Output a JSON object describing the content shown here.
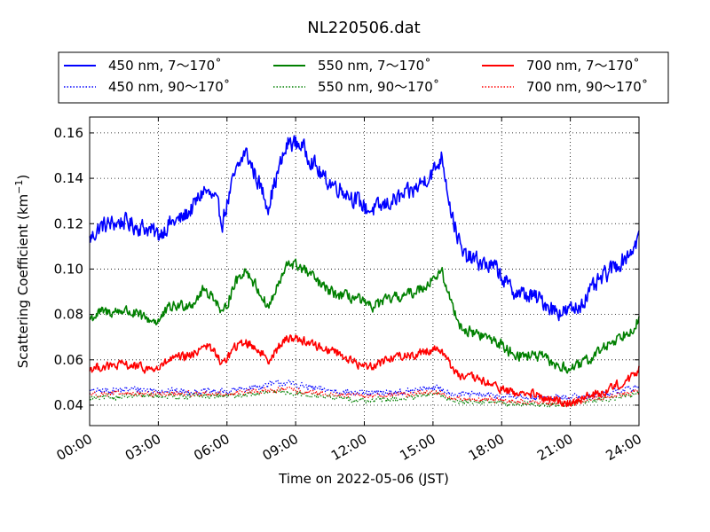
{
  "chart_data": {
    "type": "line",
    "title": "NL220506.dat",
    "xlabel": "Time on 2022-05-06 (JST)",
    "ylabel": "Scattering Coefficient (km",
    "ylabel_exponent": "−1",
    "ylabel_close": ")",
    "xlim": [
      0,
      24
    ],
    "ylim": [
      0.031,
      0.167
    ],
    "grid": true,
    "grid_style": "dotted",
    "legend_placement": "top",
    "x_ticks": [
      0,
      3,
      6,
      9,
      12,
      15,
      18,
      21,
      24
    ],
    "x_tick_labels": [
      "00:00",
      "03:00",
      "06:00",
      "09:00",
      "12:00",
      "15:00",
      "18:00",
      "21:00",
      "24:00"
    ],
    "y_ticks": [
      0.04,
      0.06,
      0.08,
      0.1,
      0.12,
      0.14,
      0.16
    ],
    "y_tick_labels": [
      "0.04",
      "0.06",
      "0.08",
      "0.10",
      "0.12",
      "0.14",
      "0.16"
    ],
    "series": [
      {
        "name": "450 nm, 7～170˚",
        "color": "#0000ff",
        "style": "solid",
        "x": [
          0,
          0.5,
          1,
          1.5,
          2,
          2.5,
          3,
          3.5,
          4,
          4.5,
          5,
          5.5,
          5.8,
          6.3,
          6.8,
          7.3,
          7.8,
          8.3,
          8.7,
          9.2,
          9.7,
          10.2,
          10.7,
          11.2,
          11.7,
          12.2,
          12.7,
          13.2,
          13.7,
          14.2,
          14.7,
          15.1,
          15.4,
          15.8,
          16.3,
          16.8,
          17.3,
          17.8,
          18.3,
          18.8,
          19.3,
          19.8,
          20.3,
          20.8,
          21.3,
          21.8,
          22.3,
          22.8,
          23.3,
          23.8,
          24
        ],
        "y": [
          0.113,
          0.119,
          0.12,
          0.121,
          0.119,
          0.118,
          0.115,
          0.12,
          0.122,
          0.127,
          0.135,
          0.13,
          0.121,
          0.14,
          0.152,
          0.14,
          0.128,
          0.145,
          0.156,
          0.155,
          0.148,
          0.14,
          0.137,
          0.134,
          0.13,
          0.126,
          0.127,
          0.13,
          0.132,
          0.135,
          0.14,
          0.144,
          0.15,
          0.125,
          0.106,
          0.104,
          0.102,
          0.1,
          0.092,
          0.089,
          0.088,
          0.086,
          0.082,
          0.081,
          0.083,
          0.089,
          0.095,
          0.1,
          0.104,
          0.11,
          0.115
        ],
        "noise": 0.0035
      },
      {
        "name": "450 nm, 90～170˚",
        "color": "#0000ff",
        "style": "dotted",
        "x": [
          0,
          2,
          4,
          6,
          8.5,
          10,
          12,
          14,
          15,
          16,
          18,
          20,
          22,
          24
        ],
        "y": [
          0.046,
          0.047,
          0.046,
          0.046,
          0.05,
          0.047,
          0.045,
          0.046,
          0.048,
          0.045,
          0.044,
          0.043,
          0.044,
          0.048
        ],
        "noise": 0.0013
      },
      {
        "name": "550 nm, 7～170˚",
        "color": "#008000",
        "style": "solid",
        "x": [
          0,
          0.5,
          1,
          1.5,
          2,
          2.5,
          3,
          3.5,
          4,
          4.5,
          5,
          5.5,
          5.8,
          6.3,
          6.8,
          7.3,
          7.8,
          8.3,
          8.7,
          9.2,
          9.7,
          10.2,
          10.7,
          11.2,
          11.7,
          12.2,
          12.7,
          13.2,
          13.7,
          14.2,
          14.7,
          15.1,
          15.4,
          15.8,
          16.3,
          16.8,
          17.3,
          17.8,
          18.3,
          18.8,
          19.3,
          19.8,
          20.3,
          20.8,
          21.3,
          21.8,
          22.3,
          22.8,
          23.3,
          23.8,
          24
        ],
        "y": [
          0.078,
          0.081,
          0.081,
          0.082,
          0.08,
          0.078,
          0.077,
          0.083,
          0.084,
          0.085,
          0.091,
          0.087,
          0.079,
          0.093,
          0.1,
          0.092,
          0.083,
          0.094,
          0.103,
          0.101,
          0.097,
          0.092,
          0.089,
          0.088,
          0.087,
          0.083,
          0.085,
          0.087,
          0.088,
          0.09,
          0.093,
          0.097,
          0.098,
          0.085,
          0.073,
          0.072,
          0.07,
          0.068,
          0.064,
          0.062,
          0.062,
          0.061,
          0.058,
          0.056,
          0.057,
          0.06,
          0.064,
          0.068,
          0.071,
          0.075,
          0.078
        ],
        "noise": 0.0022
      },
      {
        "name": "550 nm, 90～170˚",
        "color": "#008000",
        "style": "dotted",
        "x": [
          0,
          2,
          4,
          6,
          8.5,
          10,
          12,
          14,
          15,
          16,
          18,
          20,
          22,
          24
        ],
        "y": [
          0.043,
          0.044,
          0.044,
          0.044,
          0.046,
          0.044,
          0.042,
          0.043,
          0.045,
          0.042,
          0.041,
          0.04,
          0.042,
          0.045
        ],
        "noise": 0.0011
      },
      {
        "name": "700 nm, 7～170˚",
        "color": "#ff0000",
        "style": "solid",
        "x": [
          0,
          0.5,
          1,
          1.5,
          2,
          2.5,
          3,
          3.5,
          4,
          4.5,
          5,
          5.5,
          5.8,
          6.3,
          6.8,
          7.3,
          7.8,
          8.3,
          8.7,
          9.2,
          9.7,
          10.2,
          10.7,
          11.2,
          11.7,
          12.2,
          12.7,
          13.2,
          13.7,
          14.2,
          14.7,
          15.1,
          15.4,
          15.8,
          16.3,
          16.8,
          17.3,
          17.8,
          18.3,
          18.8,
          19.3,
          19.8,
          20.3,
          20.8,
          21.3,
          21.8,
          22.3,
          22.8,
          23.3,
          23.8,
          24
        ],
        "y": [
          0.056,
          0.057,
          0.057,
          0.058,
          0.057,
          0.056,
          0.056,
          0.06,
          0.061,
          0.062,
          0.067,
          0.063,
          0.058,
          0.065,
          0.068,
          0.065,
          0.06,
          0.066,
          0.07,
          0.069,
          0.067,
          0.065,
          0.064,
          0.061,
          0.058,
          0.057,
          0.059,
          0.061,
          0.062,
          0.062,
          0.064,
          0.065,
          0.064,
          0.057,
          0.052,
          0.052,
          0.05,
          0.048,
          0.046,
          0.045,
          0.045,
          0.043,
          0.042,
          0.041,
          0.042,
          0.044,
          0.045,
          0.048,
          0.05,
          0.053,
          0.056
        ],
        "noise": 0.0018
      },
      {
        "name": "700 nm, 90～170˚",
        "color": "#ff0000",
        "style": "dotted",
        "x": [
          0,
          2,
          4,
          6,
          8.5,
          10,
          12,
          14,
          15,
          16,
          18,
          20,
          22,
          24
        ],
        "y": [
          0.045,
          0.045,
          0.045,
          0.045,
          0.047,
          0.045,
          0.044,
          0.045,
          0.046,
          0.043,
          0.042,
          0.041,
          0.043,
          0.046
        ],
        "noise": 0.0011
      }
    ]
  }
}
